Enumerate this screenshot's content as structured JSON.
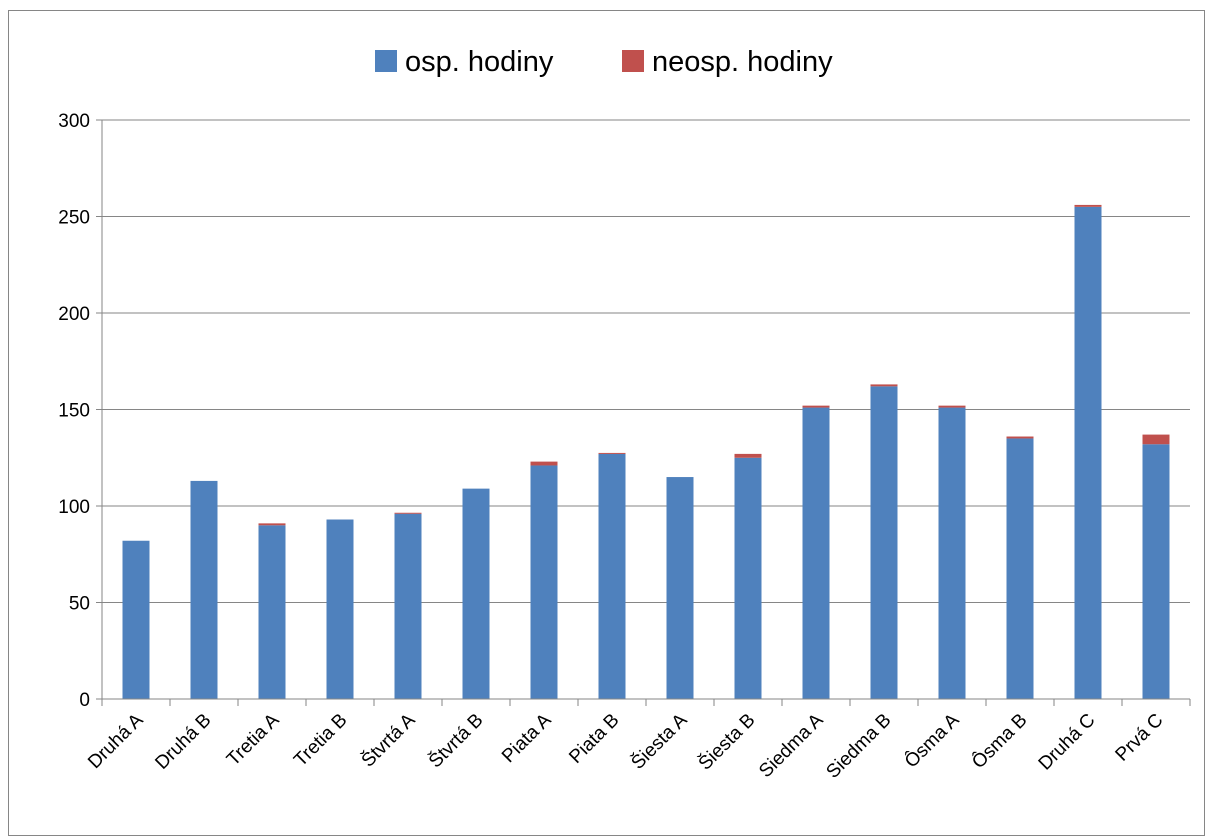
{
  "chart_data": {
    "type": "bar",
    "stacked": true,
    "categories": [
      "Druhá A",
      "Druhá B",
      "Tretia A",
      "Tretia B",
      "Štvrtá A",
      "Štvrtá B",
      "Piata A",
      "Piata B",
      "Šiesta A",
      "Šiesta B",
      "Siedma A",
      "Siedma B",
      "Ôsma A",
      "Ôsma B",
      "Druhá C",
      "Prvá C"
    ],
    "series": [
      {
        "name": "osp. hodiny",
        "color": "#4F81BD",
        "values": [
          82,
          113,
          90,
          93,
          96,
          109,
          121,
          127,
          115,
          125,
          151,
          162,
          151,
          135,
          255,
          132
        ]
      },
      {
        "name": "neosp. hodiny",
        "color": "#C0504D",
        "values": [
          0,
          0,
          1,
          0,
          0.5,
          0,
          2,
          0.5,
          0,
          2,
          1,
          1,
          1,
          1,
          1,
          5
        ]
      }
    ],
    "ylim": [
      0,
      300
    ],
    "yticks": [
      "0",
      "50",
      "100",
      "150",
      "200",
      "250",
      "300"
    ],
    "grid": true,
    "legend_position": "top"
  }
}
